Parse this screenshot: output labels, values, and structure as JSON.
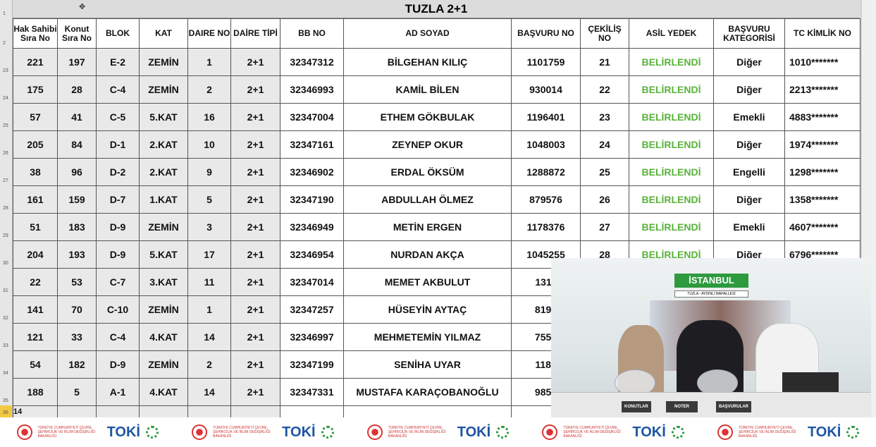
{
  "sheet": {
    "title": "TUZLA 2+1",
    "row_numbers": [
      "1",
      "2",
      "23",
      "24",
      "25",
      "26",
      "27",
      "28",
      "29",
      "30",
      "31",
      "32",
      "33",
      "34",
      "35",
      "36"
    ],
    "partial_row_cell": "14"
  },
  "headers": [
    "Hak Sahibi Sıra No",
    "Konut Sıra No",
    "BLOK",
    "KAT",
    "DAIRE NO",
    "DAİRE TİPİ",
    "BB NO",
    "AD SOYAD",
    "BAŞVURU NO",
    "ÇEKİLİŞ NO",
    "ASİL YEDEK",
    "BAŞVURU KATEGORİSİ",
    "TC KİMLİK NO"
  ],
  "rows": [
    [
      "221",
      "197",
      "E-2",
      "ZEMİN",
      "1",
      "2+1",
      "32347312",
      "BİLGEHAN KILIÇ",
      "1101759",
      "21",
      "BELİRLENDİ",
      "Diğer",
      "1010*******"
    ],
    [
      "175",
      "28",
      "C-4",
      "ZEMİN",
      "2",
      "2+1",
      "32346993",
      "KAMİL BİLEN",
      "930014",
      "22",
      "BELİRLENDİ",
      "Diğer",
      "2213*******"
    ],
    [
      "57",
      "41",
      "C-5",
      "5.KAT",
      "16",
      "2+1",
      "32347004",
      "ETHEM GÖKBULAK",
      "1196401",
      "23",
      "BELİRLENDİ",
      "Emekli",
      "4883*******"
    ],
    [
      "205",
      "84",
      "D-1",
      "2.KAT",
      "10",
      "2+1",
      "32347161",
      "ZEYNEP OKUR",
      "1048003",
      "24",
      "BELİRLENDİ",
      "Diğer",
      "1974*******"
    ],
    [
      "38",
      "96",
      "D-2",
      "2.KAT",
      "9",
      "2+1",
      "32346902",
      "ERDAL ÖKSÜM",
      "1288872",
      "25",
      "BELİRLENDİ",
      "Engelli",
      "1298*******"
    ],
    [
      "161",
      "159",
      "D-7",
      "1.KAT",
      "5",
      "2+1",
      "32347190",
      "ABDULLAH ÖLMEZ",
      "879576",
      "26",
      "BELİRLENDİ",
      "Diğer",
      "1358*******"
    ],
    [
      "51",
      "183",
      "D-9",
      "ZEMİN",
      "3",
      "2+1",
      "32346949",
      "METİN ERGEN",
      "1178376",
      "27",
      "BELİRLENDİ",
      "Emekli",
      "4607*******"
    ],
    [
      "204",
      "193",
      "D-9",
      "5.KAT",
      "17",
      "2+1",
      "32346954",
      "NURDAN AKÇA",
      "1045255",
      "28",
      "BELİRLENDİ",
      "Diğer",
      "6796*******"
    ],
    [
      "22",
      "53",
      "C-7",
      "3.KAT",
      "11",
      "2+1",
      "32347014",
      "MEMET AKBULUT",
      "1311",
      "",
      "",
      "",
      ""
    ],
    [
      "141",
      "70",
      "C-10",
      "ZEMİN",
      "1",
      "2+1",
      "32347257",
      "HÜSEYİN AYTAÇ",
      "8192",
      "",
      "",
      "",
      ""
    ],
    [
      "121",
      "33",
      "C-4",
      "4.KAT",
      "14",
      "2+1",
      "32346997",
      "MEHMETEMİN YILMAZ",
      "7558",
      "",
      "",
      "",
      ""
    ],
    [
      "54",
      "182",
      "D-9",
      "ZEMİN",
      "2",
      "2+1",
      "32347199",
      "SENİHA UYAR",
      "1188",
      "",
      "",
      "",
      ""
    ],
    [
      "188",
      "5",
      "A-1",
      "4.KAT",
      "14",
      "2+1",
      "32347331",
      "MUSTAFA KARAÇOBANOĞLU",
      "9856",
      "",
      "",
      "",
      ""
    ]
  ],
  "colors": {
    "status_green": "#58b23a",
    "toki_blue": "#1d55a5"
  },
  "video": {
    "banner": "İSTANBUL",
    "subtitle": "TUZLA - AYDINLI MAHALLESİ",
    "signs": [
      "KONUTLAR",
      "NOTER",
      "BAŞVURULAR"
    ]
  },
  "footer": {
    "ministry": "TÜRKİYE CUMHURİYETİ ÇEVRE, ŞEHİRCİLİK VE İKLİM DEĞİŞİKLİĞİ BAKANLIĞI",
    "toki": "TOKİ"
  }
}
